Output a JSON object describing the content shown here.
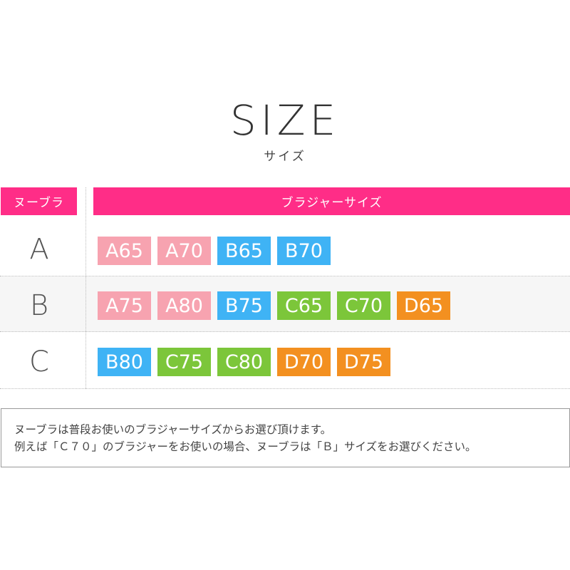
{
  "title": "SIZE",
  "subtitle": "サイズ",
  "header": {
    "left": "ヌーブラ",
    "right": "ブラジャーサイズ"
  },
  "colors": {
    "header": "#ff2d87",
    "A": "#f7a3b0",
    "B": "#3fb3f5",
    "C": "#7cc63a",
    "D": "#f39020"
  },
  "rows": [
    {
      "size": "A",
      "tags": [
        "A65",
        "A70",
        "B65",
        "B70"
      ]
    },
    {
      "size": "B",
      "tags": [
        "A75",
        "A80",
        "B75",
        "C65",
        "C70",
        "D65"
      ]
    },
    {
      "size": "C",
      "tags": [
        "B80",
        "C75",
        "C80",
        "D70",
        "D75"
      ]
    }
  ],
  "note": {
    "line1": "ヌーブラは普段お使いのブラジャーサイズからお選び頂けます。",
    "line2": "例えば「Ｃ７０」のブラジャーをお使いの場合、ヌーブラは「Ｂ」サイズをお選びください。"
  }
}
